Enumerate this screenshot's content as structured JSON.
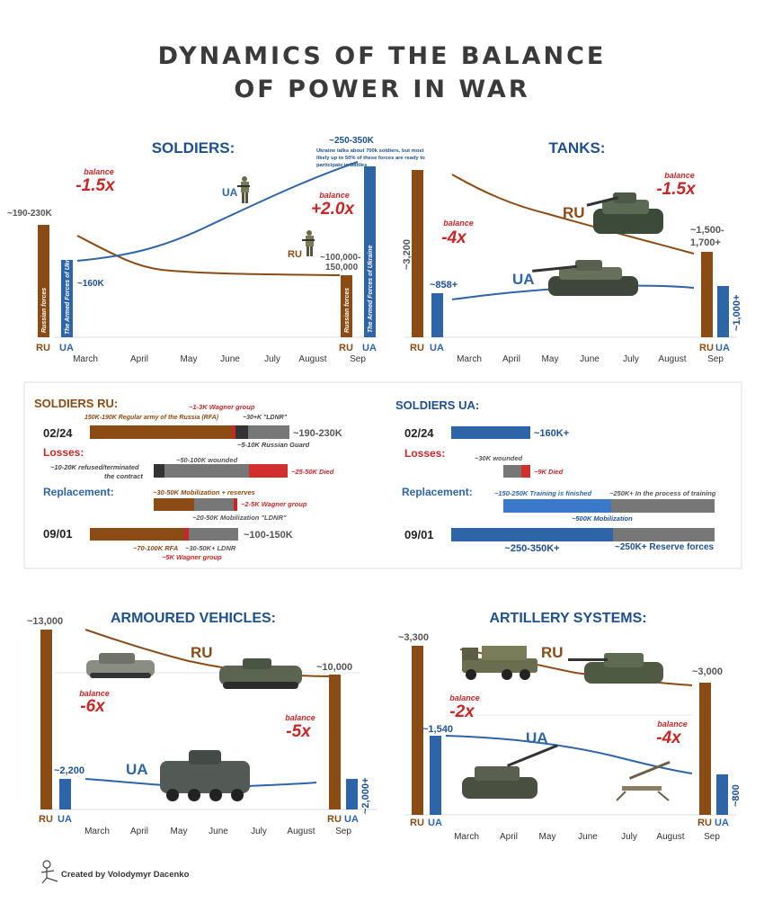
{
  "title": {
    "line1": "DYNAMICS OF THE BALANCE",
    "line2": "OF POWER IN WAR"
  },
  "colors": {
    "ru": "#8a4b14",
    "ua": "#2e64a8",
    "red": "#c62828",
    "navy": "#1e5090",
    "grey": "#666666",
    "lightgrey": "#e7e7e7"
  },
  "labels": {
    "ru": "RU",
    "ua": "UA",
    "balance": "balance"
  },
  "months": [
    "March",
    "April",
    "May",
    "June",
    "July",
    "August",
    "Sep"
  ],
  "credit": "Created by Volodymyr Dacenko",
  "chart_data": [
    {
      "id": "soldiers",
      "type": "bar",
      "title": "SOLDIERS:",
      "start": {
        "ru_label": "~190-230K",
        "ua_label": "~160K",
        "ru_bar_text": "Russian forces",
        "ua_bar_text": "The Armed Forces of Ukraine"
      },
      "end": {
        "ru_label": "~100,000-",
        "ru_label2": "150,000",
        "ua_label": "~250-350K",
        "ru_bar_text": "Russian forces",
        "ua_bar_text": "The Armed Forces of Ukraine"
      },
      "balance_start": "-1.5x",
      "balance_end": "+2.0x",
      "note": [
        "Ukraine talks about 700k soldiers, but most",
        "likely up to 50% of these forces are ready to",
        "participate in battles"
      ],
      "start_values": {
        "ru": 210,
        "ua": 160
      },
      "end_values": {
        "ru": 125,
        "ua": 300
      }
    },
    {
      "id": "tanks",
      "type": "bar",
      "title": "TANKS:",
      "start": {
        "ru_label": "~3,200",
        "ua_label": "~858+"
      },
      "end": {
        "ru_label": "~1,500-",
        "ru_label2": "1,700+",
        "ua_label": "~1,000+"
      },
      "balance_start": "-4x",
      "balance_end": "-1.5x",
      "start_values": {
        "ru": 3200,
        "ua": 858
      },
      "end_values": {
        "ru": 1600,
        "ua": 1000
      }
    },
    {
      "id": "armoured",
      "type": "bar",
      "title": "ARMOURED VEHICLES:",
      "start": {
        "ru_label": "~13,000",
        "ua_label": "~2,200"
      },
      "end": {
        "ru_label": "~10,000",
        "ua_label": "~2,000+"
      },
      "balance_start": "-6x",
      "balance_end": "-5x",
      "start_values": {
        "ru": 13000,
        "ua": 2200
      },
      "end_values": {
        "ru": 10000,
        "ua": 2000
      }
    },
    {
      "id": "artillery",
      "type": "bar",
      "title": "ARTILLERY SYSTEMS:",
      "start": {
        "ru_label": "~3,300",
        "ua_label": "~1,540"
      },
      "end": {
        "ru_label": "~3,000",
        "ua_label": "~800"
      },
      "balance_start": "-2x",
      "balance_end": "-4x",
      "start_values": {
        "ru": 3300,
        "ua": 1540
      },
      "end_values": {
        "ru": 3000,
        "ua": 800
      }
    }
  ],
  "soldiers_ru": {
    "title": "SOLDIERS RU:",
    "row1": {
      "date": "02/24",
      "total": "~190-230K",
      "ann_top1": "~1-3K Wagner group",
      "ann_top2": "150K-190K Regular army of the Russia (RFA)",
      "ann_top3": "~30+K \"LDNR\"",
      "ann_below": "~5-10K Russian Guard"
    },
    "losses": {
      "label": "Losses:",
      "a": "~10-20K refused/terminated",
      "a2": "the contract",
      "b": "~50-100K wounded",
      "c": "~25-50K Died"
    },
    "replacement": {
      "label": "Replacement:",
      "a": "~30-50K Mobilization + reserves",
      "b": "~2-5K Wagner group",
      "c": "~20-50K Mobilization \"LDNR\""
    },
    "row2": {
      "date": "09/01",
      "total": "~100-150K",
      "a": "~70-100K RFA",
      "b": "~30-50K+ LDNR",
      "c": "~5K Wagner group"
    }
  },
  "soldiers_ua": {
    "title": "SOLDIERS UA:",
    "row1": {
      "date": "02/24",
      "total": "~160K+"
    },
    "losses": {
      "label": "Losses:",
      "a": "~30K wounded",
      "b": "~9K Died"
    },
    "replacement": {
      "label": "Replacement:",
      "a": "~150-250K Training is finished",
      "b": "~250K+ In the process of training",
      "c": "~500K Mobilization"
    },
    "row2": {
      "date": "09/01",
      "a": "~250-350K+",
      "b": "~250K+ Reserve forces"
    }
  }
}
